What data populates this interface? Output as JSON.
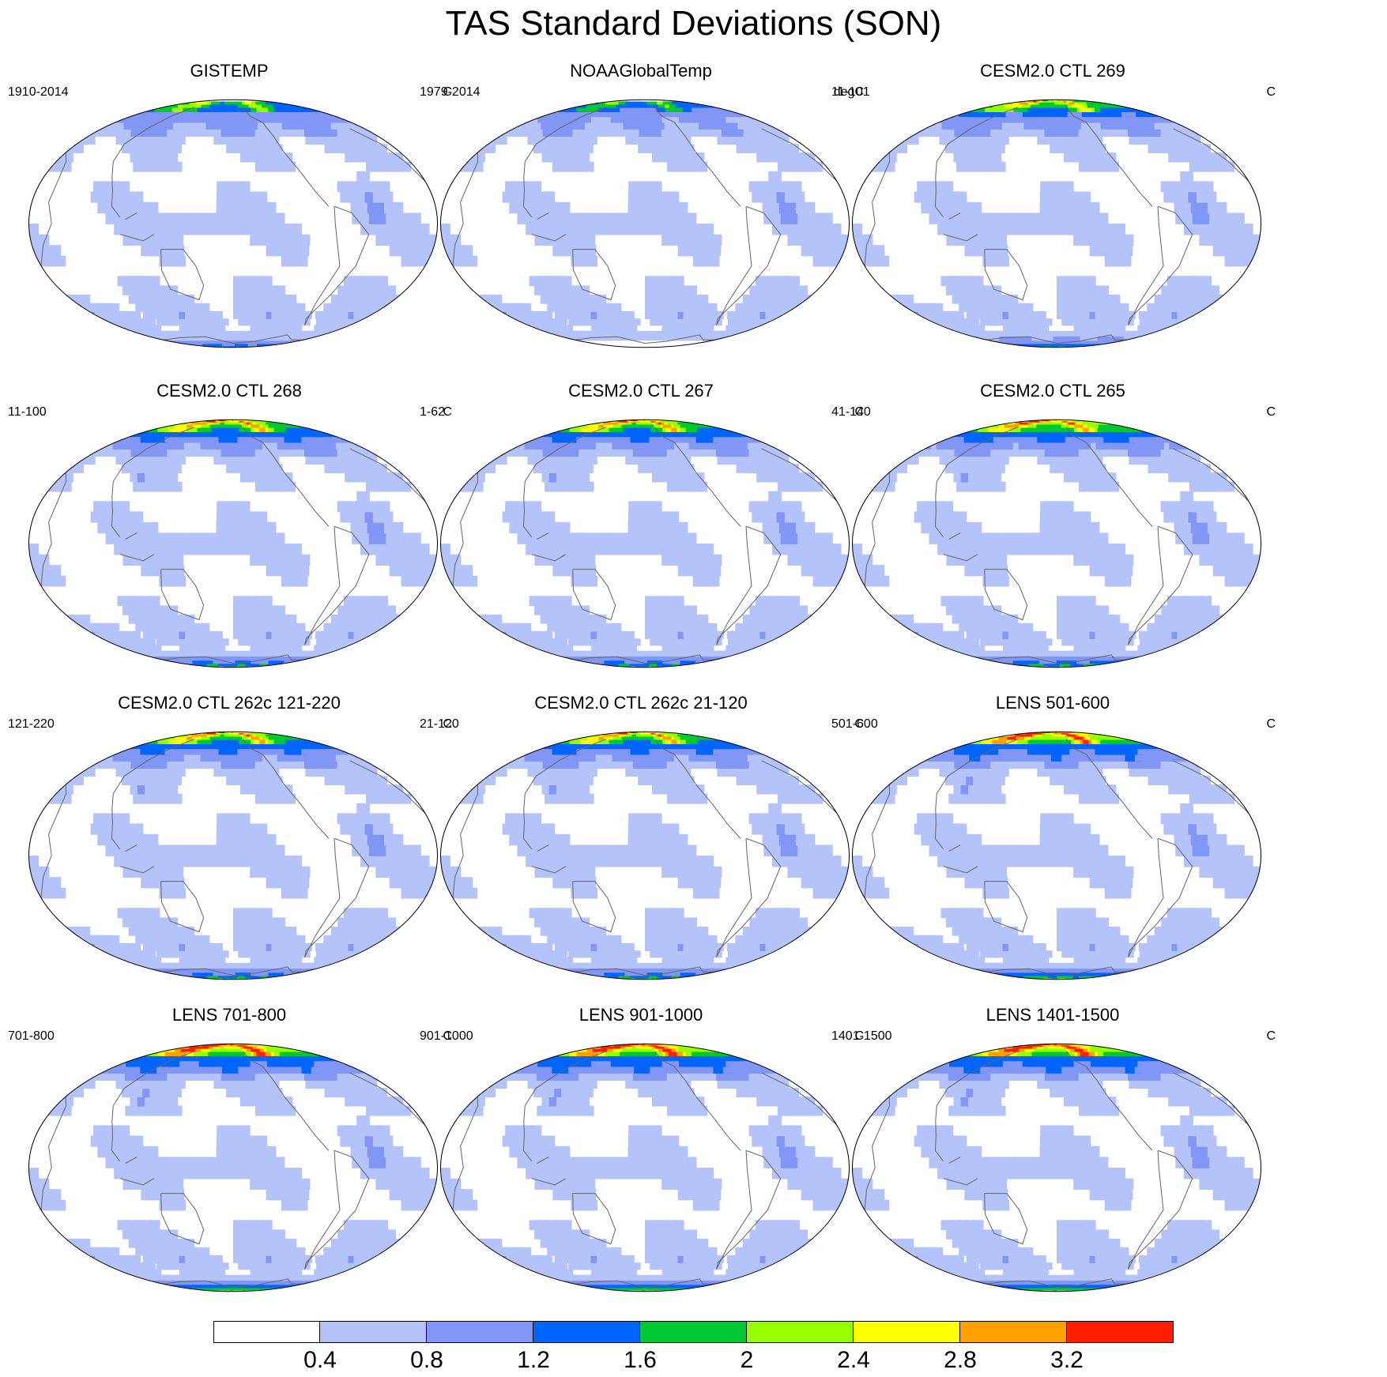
{
  "title": "TAS Standard Deviations (SON)",
  "panels": [
    {
      "title": "GISTEMP",
      "years": "1910-2014",
      "units": "C",
      "intensity": 0.85,
      "arctic_mask": true,
      "antarctic_mask": true
    },
    {
      "title": "NOAAGlobalTemp",
      "years": "1979-2014",
      "units": "degC",
      "intensity": 0.7,
      "arctic_mask": true,
      "antarctic_mask": true
    },
    {
      "title": "CESM2.0 CTL 269",
      "years": "11-101",
      "units": "C",
      "intensity": 1.0,
      "arctic_mask": false,
      "antarctic_mask": false
    },
    {
      "title": "CESM2.0 CTL 268",
      "years": "11-100",
      "units": "C",
      "intensity": 1.1,
      "arctic_mask": false,
      "antarctic_mask": false
    },
    {
      "title": "CESM2.0 CTL 267",
      "years": "1-62",
      "units": "C",
      "intensity": 1.1,
      "arctic_mask": false,
      "antarctic_mask": false
    },
    {
      "title": "CESM2.0 CTL 265",
      "years": "41-140",
      "units": "C",
      "intensity": 1.15,
      "arctic_mask": false,
      "antarctic_mask": false
    },
    {
      "title": "CESM2.0 CTL 262c 121-220",
      "years": "121-220",
      "units": "C",
      "intensity": 1.1,
      "arctic_mask": false,
      "antarctic_mask": false
    },
    {
      "title": "CESM2.0 CTL 262c 21-120",
      "years": "21-120",
      "units": "C",
      "intensity": 1.1,
      "arctic_mask": false,
      "antarctic_mask": false
    },
    {
      "title": "LENS 501-600",
      "years": "501-600",
      "units": "C",
      "intensity": 1.3,
      "arctic_mask": false,
      "antarctic_mask": false
    },
    {
      "title": "LENS 701-800",
      "years": "701-800",
      "units": "C",
      "intensity": 1.35,
      "arctic_mask": false,
      "antarctic_mask": false
    },
    {
      "title": "LENS 901-1000",
      "years": "901-1000",
      "units": "C",
      "intensity": 1.35,
      "arctic_mask": false,
      "antarctic_mask": false
    },
    {
      "title": "LENS 1401-1500",
      "years": "1401-1500",
      "units": "C",
      "intensity": 1.35,
      "arctic_mask": false,
      "antarctic_mask": false
    }
  ],
  "colorbar": {
    "labels": [
      "0.4",
      "0.8",
      "1.2",
      "1.6",
      "2",
      "2.4",
      "2.8",
      "3.2"
    ],
    "levels": [
      0.4,
      0.8,
      1.2,
      1.6,
      2.0,
      2.4,
      2.8,
      3.2
    ],
    "colors": [
      "#ffffff",
      "#b4c3fa",
      "#8296f5",
      "#0064ff",
      "#00c832",
      "#96ff00",
      "#ffff00",
      "#ffa000",
      "#ff1e00"
    ]
  }
}
